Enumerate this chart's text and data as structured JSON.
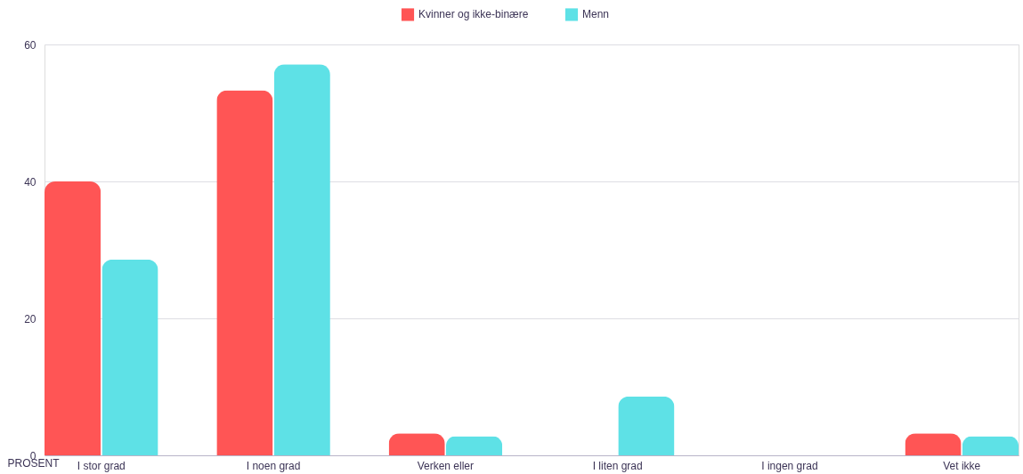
{
  "chart_data": {
    "type": "bar",
    "ylabel": "PROSENT",
    "categories": [
      "I stor grad",
      "I noen grad",
      "Verken eller",
      "I liten grad",
      "I ingen grad",
      "Vet ikke"
    ],
    "series": [
      {
        "name": "Kvinner og ikke-binære",
        "color": "#ff5555",
        "values": [
          40,
          53.3,
          3.2,
          0,
          0,
          3.2
        ]
      },
      {
        "name": "Menn",
        "color": "#5ee1e6",
        "values": [
          28.6,
          57.1,
          2.8,
          8.6,
          0,
          2.8
        ]
      }
    ],
    "ylim": [
      0,
      60
    ],
    "yticks": [
      0,
      20,
      40,
      60
    ],
    "grid": "y",
    "legend": "top"
  }
}
